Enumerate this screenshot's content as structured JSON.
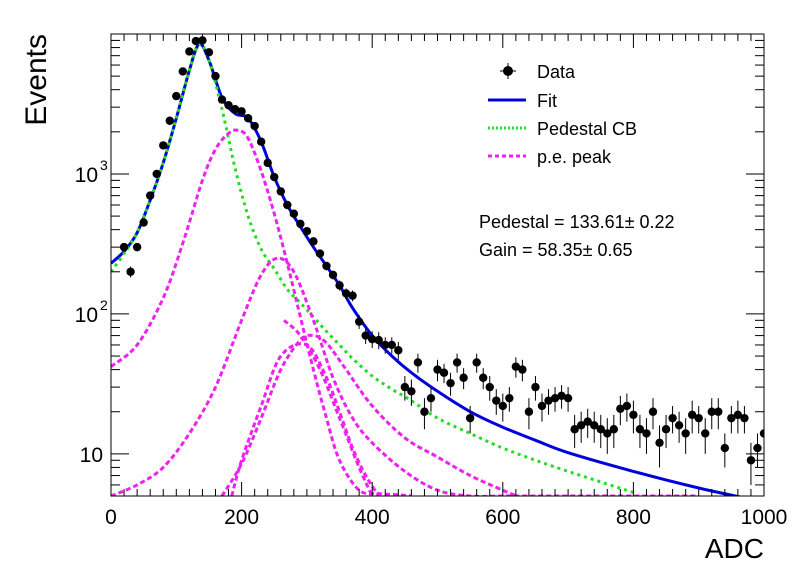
{
  "chart_data": {
    "type": "scatter",
    "title": "",
    "xlabel": "ADC",
    "ylabel": "Events",
    "xlim": [
      0,
      1000
    ],
    "ylim": [
      5,
      10000
    ],
    "y_scale": "log",
    "x_ticks": [
      "0",
      "200",
      "400",
      "600",
      "800",
      "1000"
    ],
    "y_ticks": [
      {
        "value": 10,
        "base": "10",
        "exp": ""
      },
      {
        "value": 100,
        "base": "10",
        "exp": "2"
      },
      {
        "value": 1000,
        "base": "10",
        "exp": "3"
      }
    ],
    "grid": false,
    "legend_position": "top-right",
    "legend": [
      {
        "key": "data",
        "label": "Data"
      },
      {
        "key": "fit",
        "label": "Fit"
      },
      {
        "key": "pedestal",
        "label": "Pedestal CB"
      },
      {
        "key": "pe",
        "label": "p.e. peak"
      }
    ],
    "annotations": [
      {
        "text": "Pedestal = 133.61± 0.22"
      },
      {
        "text": "Gain = 58.35± 0.65"
      }
    ],
    "colors": {
      "data": "#000000",
      "fit": "#0000dd",
      "pedestal": "#22dd22",
      "pe": "#ee22ee"
    },
    "series": [
      {
        "name": "Data",
        "style": "points",
        "x": [
          20,
          30,
          40,
          50,
          60,
          70,
          80,
          90,
          100,
          110,
          120,
          130,
          140,
          150,
          160,
          170,
          180,
          190,
          200,
          210,
          220,
          230,
          240,
          250,
          260,
          270,
          280,
          290,
          300,
          310,
          320,
          330,
          340,
          350,
          360,
          370,
          380,
          390,
          400,
          410,
          420,
          430,
          440,
          450,
          460,
          470,
          480,
          490,
          500,
          510,
          520,
          530,
          540,
          550,
          560,
          570,
          580,
          590,
          600,
          610,
          620,
          630,
          640,
          650,
          660,
          670,
          680,
          690,
          700,
          710,
          720,
          730,
          740,
          750,
          760,
          770,
          780,
          790,
          800,
          810,
          820,
          830,
          840,
          850,
          860,
          870,
          880,
          890,
          900,
          910,
          920,
          930,
          940,
          950,
          960,
          970,
          980,
          990,
          1000
        ],
        "y": [
          300,
          200,
          300,
          450,
          700,
          1000,
          1600,
          2400,
          3600,
          5400,
          7500,
          8900,
          9000,
          7400,
          5000,
          3400,
          3100,
          2900,
          2800,
          2500,
          2200,
          1700,
          1200,
          950,
          750,
          600,
          520,
          440,
          390,
          330,
          270,
          220,
          190,
          160,
          140,
          135,
          88,
          70,
          66,
          65,
          60,
          60,
          55,
          30,
          28,
          45,
          20,
          25,
          40,
          38,
          32,
          45,
          35,
          18,
          45,
          35,
          30,
          24,
          22,
          25,
          42,
          40,
          20,
          30,
          22,
          24,
          25,
          26,
          25,
          15,
          16,
          17,
          16,
          15,
          14,
          15,
          21,
          22,
          19,
          15,
          14,
          20,
          12,
          15,
          18,
          16,
          14,
          19,
          18,
          14,
          20,
          20,
          11,
          18,
          19,
          18,
          9,
          11,
          14
        ],
        "err": [
          20,
          18,
          20,
          25,
          30,
          35,
          45,
          55,
          65,
          80,
          95,
          100,
          100,
          95,
          80,
          65,
          60,
          58,
          56,
          52,
          50,
          44,
          38,
          33,
          30,
          26,
          24,
          22,
          20,
          19,
          17,
          15,
          14,
          13,
          12,
          12,
          10,
          9,
          9,
          9,
          8,
          8,
          8,
          6,
          6,
          7,
          5,
          5,
          7,
          6,
          6,
          7,
          6,
          4,
          7,
          6,
          6,
          5,
          5,
          5,
          7,
          7,
          5,
          6,
          5,
          5,
          5,
          5,
          5,
          4,
          4,
          4,
          4,
          4,
          4,
          4,
          5,
          5,
          5,
          4,
          4,
          5,
          4,
          4,
          4,
          4,
          4,
          5,
          4,
          4,
          5,
          5,
          3,
          4,
          5,
          4,
          3,
          3,
          4
        ]
      },
      {
        "name": "Fit",
        "style": "line",
        "x": [
          0,
          20,
          40,
          60,
          80,
          100,
          120,
          135,
          150,
          170,
          190,
          210,
          230,
          250,
          270,
          290,
          310,
          330,
          350,
          370,
          400,
          430,
          460,
          500,
          550,
          600,
          650,
          700,
          800,
          900,
          975
        ],
        "y": [
          230,
          280,
          380,
          650,
          1200,
          2500,
          5500,
          8500,
          6500,
          3500,
          2700,
          2500,
          1700,
          950,
          600,
          420,
          300,
          220,
          160,
          110,
          70,
          50,
          38,
          28,
          20,
          15.5,
          12.5,
          10.2,
          7.5,
          5.7,
          4.8
        ]
      },
      {
        "name": "Pedestal CB",
        "style": "dotted",
        "x": [
          0,
          20,
          40,
          60,
          80,
          100,
          120,
          135,
          150,
          170,
          190,
          210,
          230,
          250,
          270,
          290,
          310,
          330,
          350,
          370,
          400,
          430,
          460,
          500,
          550,
          600,
          650,
          700,
          750,
          800
        ],
        "y": [
          200,
          270,
          380,
          650,
          1200,
          2500,
          5500,
          8500,
          6500,
          2900,
          1100,
          500,
          290,
          210,
          150,
          120,
          95,
          75,
          60,
          48,
          36,
          29,
          24,
          18,
          14,
          11,
          9,
          7.5,
          6.3,
          5.3
        ]
      },
      {
        "name": "p.e. peak 1",
        "style": "dashed",
        "x": [
          0,
          40,
          80,
          110,
          140,
          160,
          180,
          195,
          210,
          230,
          250,
          270,
          290,
          310,
          330,
          350,
          380,
          410,
          440,
          460
        ],
        "y": [
          42,
          60,
          130,
          320,
          900,
          1500,
          1950,
          2050,
          1800,
          1050,
          520,
          230,
          95,
          40,
          18,
          9,
          5.5,
          5.2,
          5.1,
          5
        ]
      },
      {
        "name": "p.e. peak 2",
        "style": "dashed",
        "x": [
          0,
          40,
          80,
          120,
          160,
          200,
          230,
          255,
          280,
          310,
          340,
          370,
          400,
          450,
          500,
          550,
          600,
          650,
          700,
          750,
          800,
          850,
          900
        ],
        "y": [
          5,
          6,
          8,
          14,
          30,
          90,
          190,
          250,
          200,
          90,
          35,
          18,
          12,
          7.5,
          5.5,
          5,
          5,
          5,
          5,
          5,
          5,
          5,
          5
        ]
      },
      {
        "name": "p.e. peak 3",
        "style": "dashed",
        "x": [
          170,
          200,
          230,
          260,
          290,
          310,
          330,
          360,
          400,
          450,
          500,
          550,
          600,
          630
        ],
        "y": [
          5,
          8.5,
          18,
          40,
          65,
          70,
          62,
          40,
          22,
          13,
          9.5,
          7,
          5.5,
          4.8
        ]
      },
      {
        "name": "p.e. peak 3 lower",
        "style": "dashed",
        "x": [
          185,
          200,
          230,
          260,
          300,
          330,
          350,
          370,
          390,
          410
        ],
        "y": [
          5,
          9,
          22,
          50,
          60,
          35,
          20,
          11,
          7,
          5
        ]
      },
      {
        "name": "p.e. peak 2 lower",
        "style": "dashed",
        "x": [
          265,
          290,
          320,
          350,
          380,
          400
        ],
        "y": [
          90,
          70,
          40,
          18,
          8,
          5
        ]
      }
    ]
  }
}
